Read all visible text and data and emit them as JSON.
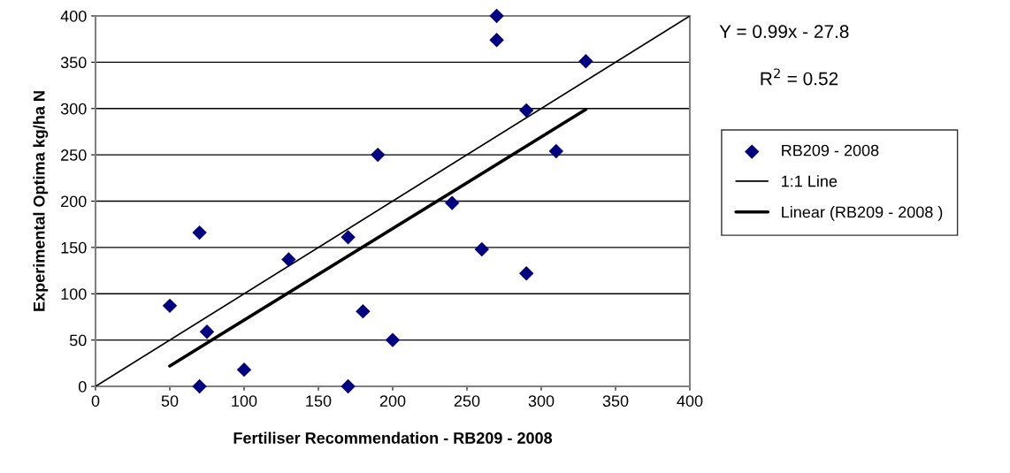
{
  "chart_data": {
    "type": "scatter",
    "xlabel": "Fertiliser Recommendation - RB209 - 2008",
    "ylabel": "Experimental Optima kg/ha N",
    "xlim": [
      0,
      400
    ],
    "xticks": [
      0,
      50,
      100,
      150,
      200,
      250,
      300,
      350,
      400
    ],
    "ylim": [
      0,
      400
    ],
    "yticks": [
      0,
      50,
      100,
      150,
      200,
      250,
      300,
      350,
      400
    ],
    "grid": "y",
    "legend": "right",
    "annotations": [
      "Y = 0.99x - 27.8",
      "R$^{2}$ = 0.52"
    ],
    "series": [
      {
        "name": "RB209 - 2008",
        "marker": "diamond",
        "color": "#000080",
        "x": [
          50,
          70,
          75,
          70,
          100,
          130,
          170,
          180,
          200,
          190,
          170,
          270,
          270,
          330,
          290,
          310,
          240,
          260,
          290
        ],
        "values": [
          87,
          166,
          59,
          0,
          18,
          137,
          161,
          81,
          50,
          250,
          0,
          400,
          374,
          351,
          298,
          254,
          198,
          148,
          122
        ]
      },
      {
        "name": "1:1 Line",
        "type": "line",
        "marker": "none",
        "line_style": "solid",
        "color": "#000000",
        "x": [
          0,
          400
        ],
        "values": [
          0,
          400
        ]
      },
      {
        "name": "Linear (RB209 - 2008 )",
        "type": "line",
        "marker": "none",
        "line_style": "solid",
        "color": "#000000",
        "x": [
          50,
          330
        ],
        "values": [
          22,
          299
        ]
      }
    ]
  }
}
